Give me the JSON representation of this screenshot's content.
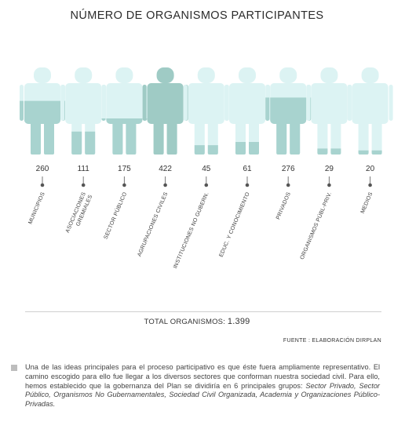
{
  "title": "NÚMERO DE ORGANISMOS PARTICIPANTES",
  "chart_data": {
    "type": "bar",
    "title": "NÚMERO DE ORGANISMOS PARTICIPANTES",
    "categories": [
      "MUNICIPIOS",
      "ASOCIACIONES GREMIALES",
      "SECTOR PÚBLICO",
      "AGRUPACIONES CIVILES",
      "INSTITUCIONES NO GUBERN.",
      "EDUC. Y CONOCIMIENTO",
      "PRIVADOS",
      "ORGANISMOS PÚBL-PRIV.",
      "MEDIOS"
    ],
    "category_lines": [
      [
        "MUNICIPIOS"
      ],
      [
        "ASOCIACIONES",
        "GREMIALES"
      ],
      [
        "SECTOR PÚBLICO"
      ],
      [
        "AGRUPACIONES CIVILES"
      ],
      [
        "INSTITUCIONES NO GUBERN."
      ],
      [
        "EDUC. Y CONOCIMIENTO"
      ],
      [
        "PRIVADOS"
      ],
      [
        "ORGANISMOS PÚBL-PRIV."
      ],
      [
        "MEDIOS"
      ]
    ],
    "values": [
      260,
      111,
      175,
      422,
      45,
      61,
      276,
      29,
      20
    ],
    "ylim": [
      0,
      422
    ],
    "colors": {
      "empty": "#dcf3f3",
      "filled": "#a8d3cf",
      "full": "#9fcbc5"
    }
  },
  "total": {
    "label": "TOTAL ORGANISMOS:",
    "value": "1.399"
  },
  "source": "FUENTE : ELABORACIÓN DIRPLAN",
  "note": {
    "text": "Una de las ideas principales para el proceso participativo es que éste fuera ampliamente representativo. El camino escogido para ello fue llegar a los diversos sectores que conforman nuestra sociedad civil. Para ello, hemos establecido que la gobernanza del Plan se dividiría en 6 principales grupos: ",
    "groups": "Sector Privado, Sector Público, Organismos No Gubernamentales, Sociedad Civil Organizada, Academia y Organizaciones Público-Privadas."
  }
}
